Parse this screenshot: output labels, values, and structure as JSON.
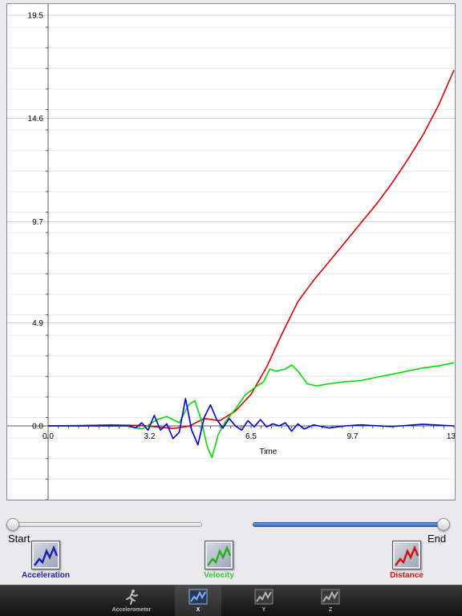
{
  "chart_data": {
    "type": "line",
    "xlabel": "Time",
    "ylabel": "",
    "xlim": [
      0.0,
      13.0
    ],
    "ylim": [
      -3.5,
      19.5
    ],
    "x_ticks": [
      "0.0",
      "3.2",
      "6.5",
      "9.7",
      "13"
    ],
    "y_ticks": [
      "0.0",
      "4.9",
      "9.7",
      "14.6",
      "19.5"
    ],
    "grid": true,
    "series": [
      {
        "name": "Distance",
        "color": "#e00000",
        "points": [
          [
            0,
            0
          ],
          [
            1,
            0.02
          ],
          [
            2,
            0.05
          ],
          [
            3,
            0.02
          ],
          [
            4,
            -0.12
          ],
          [
            4.5,
            -0.02
          ],
          [
            5,
            0.35
          ],
          [
            5.5,
            0.25
          ],
          [
            6,
            0.7
          ],
          [
            6.5,
            1.5
          ],
          [
            7,
            2.8
          ],
          [
            7.5,
            4.4
          ],
          [
            8,
            5.9
          ],
          [
            8.5,
            6.9
          ],
          [
            9,
            7.8
          ],
          [
            9.5,
            8.7
          ],
          [
            10,
            9.6
          ],
          [
            10.5,
            10.5
          ],
          [
            11,
            11.5
          ],
          [
            11.5,
            12.6
          ],
          [
            12,
            13.8
          ],
          [
            12.5,
            15.2
          ],
          [
            13,
            16.9
          ]
        ]
      },
      {
        "name": "Velocity",
        "color": "#00dd00",
        "points": [
          [
            0,
            0
          ],
          [
            2.5,
            0
          ],
          [
            3,
            -0.15
          ],
          [
            3.5,
            0.3
          ],
          [
            3.8,
            0.45
          ],
          [
            4.2,
            0.15
          ],
          [
            4.5,
            1.0
          ],
          [
            4.7,
            1.2
          ],
          [
            4.9,
            0.3
          ],
          [
            5.1,
            -1.0
          ],
          [
            5.25,
            -1.5
          ],
          [
            5.45,
            -0.4
          ],
          [
            5.7,
            0.25
          ],
          [
            6,
            0.8
          ],
          [
            6.3,
            1.45
          ],
          [
            6.6,
            1.8
          ],
          [
            6.9,
            2.1
          ],
          [
            7.1,
            2.7
          ],
          [
            7.3,
            2.6
          ],
          [
            7.6,
            2.7
          ],
          [
            7.8,
            2.9
          ],
          [
            8,
            2.6
          ],
          [
            8.3,
            2.0
          ],
          [
            8.6,
            1.9
          ],
          [
            9,
            2.0
          ],
          [
            9.5,
            2.1
          ],
          [
            10,
            2.15
          ],
          [
            10.5,
            2.3
          ],
          [
            11,
            2.45
          ],
          [
            11.5,
            2.6
          ],
          [
            12,
            2.75
          ],
          [
            12.5,
            2.85
          ],
          [
            13,
            3.0
          ]
        ]
      },
      {
        "name": "Acceleration",
        "color": "#0000d6",
        "points": [
          [
            0,
            0
          ],
          [
            2.6,
            0
          ],
          [
            2.8,
            -0.1
          ],
          [
            3.0,
            0.15
          ],
          [
            3.2,
            -0.2
          ],
          [
            3.4,
            0.5
          ],
          [
            3.6,
            -0.2
          ],
          [
            3.8,
            0.1
          ],
          [
            4.0,
            -0.6
          ],
          [
            4.2,
            -0.3
          ],
          [
            4.4,
            1.3
          ],
          [
            4.6,
            -0.2
          ],
          [
            4.8,
            -0.9
          ],
          [
            5.0,
            0.4
          ],
          [
            5.2,
            1.0
          ],
          [
            5.4,
            0.3
          ],
          [
            5.6,
            -0.1
          ],
          [
            5.8,
            0.35
          ],
          [
            6.0,
            0.0
          ],
          [
            6.2,
            -0.2
          ],
          [
            6.4,
            0.25
          ],
          [
            6.6,
            -0.05
          ],
          [
            6.8,
            0.3
          ],
          [
            7.0,
            -0.05
          ],
          [
            7.2,
            0.1
          ],
          [
            7.4,
            0.0
          ],
          [
            7.6,
            0.15
          ],
          [
            7.8,
            -0.25
          ],
          [
            8.0,
            0.1
          ],
          [
            8.2,
            -0.15
          ],
          [
            8.5,
            0.05
          ],
          [
            9,
            -0.1
          ],
          [
            9.5,
            0.0
          ],
          [
            10,
            0.05
          ],
          [
            11,
            -0.03
          ],
          [
            12,
            0.08
          ],
          [
            13,
            0.0
          ]
        ]
      }
    ]
  },
  "controls": {
    "start_label": "Start",
    "end_label": "End"
  },
  "buttons": {
    "acceleration": {
      "label": "Acceleration",
      "color": "#1c1cb0"
    },
    "velocity": {
      "label": "Velocity",
      "color": "#33cc33"
    },
    "distance": {
      "label": "Distance",
      "color": "#e01010"
    }
  },
  "tabs": [
    {
      "label": "Accelerometer",
      "icon": "runner-icon",
      "selected": false
    },
    {
      "label": "X",
      "icon": "graph-icon",
      "selected": true
    },
    {
      "label": "Y",
      "icon": "graph-icon",
      "selected": false
    },
    {
      "label": "Z",
      "icon": "graph-icon",
      "selected": false
    }
  ]
}
